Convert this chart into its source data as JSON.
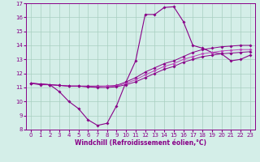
{
  "xlabel": "Windchill (Refroidissement éolien,°C)",
  "xlim": [
    -0.5,
    23.5
  ],
  "ylim": [
    8,
    17
  ],
  "yticks": [
    8,
    9,
    10,
    11,
    12,
    13,
    14,
    15,
    16,
    17
  ],
  "xticks": [
    0,
    1,
    2,
    3,
    4,
    5,
    6,
    7,
    8,
    9,
    10,
    11,
    12,
    13,
    14,
    15,
    16,
    17,
    18,
    19,
    20,
    21,
    22,
    23
  ],
  "background_color": "#d4eee8",
  "grid_color": "#a8cfc0",
  "line_color": "#880088",
  "line_color2": "#bb44bb",
  "series": [
    {
      "x": [
        0,
        1,
        2,
        3,
        4,
        5,
        6,
        7,
        8,
        9,
        10,
        11,
        12,
        13,
        14,
        15,
        16,
        17,
        18,
        19,
        20,
        21,
        22,
        23
      ],
      "y": [
        11.3,
        11.2,
        11.2,
        10.7,
        10.0,
        9.5,
        8.7,
        8.3,
        8.45,
        9.7,
        11.4,
        12.9,
        16.2,
        16.2,
        16.7,
        16.75,
        15.7,
        14.0,
        13.8,
        13.5,
        13.4,
        12.9,
        13.0,
        13.3
      ]
    },
    {
      "x": [
        0,
        1,
        2,
        3,
        4,
        5,
        6,
        7,
        8,
        9,
        10,
        11,
        12,
        13,
        14,
        15,
        16,
        17,
        18,
        19,
        20,
        21,
        22,
        23
      ],
      "y": [
        11.3,
        11.25,
        11.2,
        11.15,
        11.1,
        11.1,
        11.1,
        11.1,
        11.1,
        11.15,
        11.4,
        11.7,
        12.1,
        12.4,
        12.7,
        12.9,
        13.2,
        13.5,
        13.7,
        13.8,
        13.9,
        13.95,
        14.0,
        14.0
      ]
    },
    {
      "x": [
        0,
        1,
        2,
        3,
        4,
        5,
        6,
        7,
        8,
        9,
        10,
        11,
        12,
        13,
        14,
        15,
        16,
        17,
        18,
        19,
        20,
        21,
        22,
        23
      ],
      "y": [
        11.3,
        11.25,
        11.2,
        11.15,
        11.1,
        11.1,
        11.05,
        11.05,
        11.1,
        11.1,
        11.3,
        11.55,
        11.9,
        12.2,
        12.5,
        12.7,
        13.0,
        13.2,
        13.4,
        13.5,
        13.6,
        13.65,
        13.7,
        13.7
      ]
    },
    {
      "x": [
        0,
        1,
        2,
        3,
        4,
        5,
        6,
        7,
        8,
        9,
        10,
        11,
        12,
        13,
        14,
        15,
        16,
        17,
        18,
        19,
        20,
        21,
        22,
        23
      ],
      "y": [
        11.3,
        11.25,
        11.2,
        11.15,
        11.1,
        11.1,
        11.05,
        11.0,
        11.0,
        11.05,
        11.2,
        11.4,
        11.7,
        12.0,
        12.3,
        12.5,
        12.8,
        13.0,
        13.2,
        13.3,
        13.4,
        13.45,
        13.5,
        13.55
      ]
    }
  ]
}
